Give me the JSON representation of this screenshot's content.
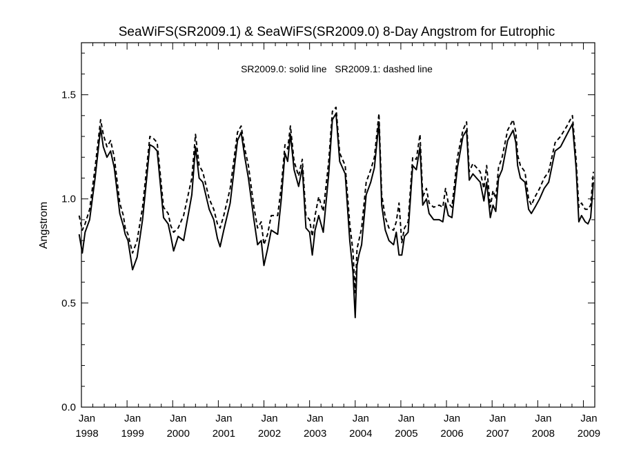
{
  "chart_data": {
    "type": "line",
    "title": "SeaWiFS(SR2009.1) & SeaWiFS(SR2009.0) 8-Day Angstrom for Eutrophic",
    "annotation": "SR2009.0: solid line   SR2009.1: dashed line",
    "xlabel": "",
    "ylabel": "Angstrom",
    "xlim": [
      1998.0,
      2009.25
    ],
    "ylim": [
      0.0,
      1.75
    ],
    "yticks": [
      0.0,
      0.5,
      1.0,
      1.5
    ],
    "yticks_label": [
      "0.0",
      "0.5",
      "1.0",
      "1.5"
    ],
    "xticks": [
      {
        "x": 1998,
        "line1": "Jan",
        "line2": "1998"
      },
      {
        "x": 1999,
        "line1": "Jan",
        "line2": "1999"
      },
      {
        "x": 2000,
        "line1": "Jan",
        "line2": "2000"
      },
      {
        "x": 2001,
        "line1": "Jan",
        "line2": "2001"
      },
      {
        "x": 2002,
        "line1": "Jan",
        "line2": "2002"
      },
      {
        "x": 2003,
        "line1": "Jan",
        "line2": "2003"
      },
      {
        "x": 2004,
        "line1": "Jan",
        "line2": "2004"
      },
      {
        "x": 2005,
        "line1": "Jan",
        "line2": "2005"
      },
      {
        "x": 2006,
        "line1": "Jan",
        "line2": "2006"
      },
      {
        "x": 2007,
        "line1": "Jan",
        "line2": "2007"
      },
      {
        "x": 2008,
        "line1": "Jan",
        "line2": "2008"
      },
      {
        "x": 2009,
        "line1": "Jan",
        "line2": "2009"
      }
    ],
    "grid": false,
    "series": [
      {
        "name": "SR2009.0",
        "style": "solid",
        "color": "#000000",
        "x": [
          1997.95,
          1998.02,
          1998.08,
          1998.18,
          1998.3,
          1998.42,
          1998.48,
          1998.56,
          1998.64,
          1998.72,
          1998.84,
          1998.92,
          1998.96,
          1999.02,
          1999.12,
          1999.22,
          1999.34,
          1999.43,
          1999.5,
          1999.58,
          1999.66,
          1999.8,
          1999.9,
          1999.96,
          2000.02,
          2000.12,
          2000.24,
          2000.42,
          2000.5,
          2000.58,
          2000.66,
          2000.8,
          2000.9,
          2000.98,
          2001.04,
          2001.12,
          2001.26,
          2001.42,
          2001.5,
          2001.58,
          2001.66,
          2001.78,
          2001.86,
          2001.94,
          2002.0,
          2002.08,
          2002.16,
          2002.3,
          2002.38,
          2002.46,
          2002.52,
          2002.58,
          2002.66,
          2002.76,
          2002.84,
          2002.92,
          2003.0,
          2003.06,
          2003.12,
          2003.2,
          2003.3,
          2003.42,
          2003.5,
          2003.58,
          2003.66,
          2003.78,
          2003.88,
          2003.95,
          2004.0,
          2004.04,
          2004.08,
          2004.14,
          2004.24,
          2004.34,
          2004.42,
          2004.52,
          2004.58,
          2004.66,
          2004.74,
          2004.84,
          2004.9,
          2004.96,
          2005.02,
          2005.08,
          2005.16,
          2005.26,
          2005.34,
          2005.42,
          2005.48,
          2005.56,
          2005.62,
          2005.72,
          2005.84,
          2005.92,
          2005.98,
          2006.04,
          2006.12,
          2006.24,
          2006.36,
          2006.44,
          2006.5,
          2006.58,
          2006.66,
          2006.74,
          2006.82,
          2006.88,
          2006.96,
          2007.02,
          2007.08,
          2007.14,
          2007.22,
          2007.34,
          2007.46,
          2007.52,
          2007.56,
          2007.62,
          2007.72,
          2007.8,
          2007.86,
          2007.94,
          2008.04,
          2008.14,
          2008.24,
          2008.38,
          2008.5,
          2008.64,
          2008.76,
          2008.84,
          2008.9,
          2008.96,
          2009.04,
          2009.1,
          2009.16,
          2009.22
        ],
        "y": [
          0.83,
          0.74,
          0.84,
          0.9,
          1.1,
          1.34,
          1.25,
          1.2,
          1.23,
          1.15,
          0.93,
          0.87,
          0.83,
          0.8,
          0.66,
          0.72,
          0.9,
          1.1,
          1.26,
          1.25,
          1.23,
          0.91,
          0.88,
          0.82,
          0.75,
          0.82,
          0.8,
          1.02,
          1.25,
          1.1,
          1.08,
          0.95,
          0.9,
          0.81,
          0.77,
          0.85,
          0.98,
          1.28,
          1.32,
          1.2,
          1.1,
          0.9,
          0.78,
          0.8,
          0.68,
          0.76,
          0.85,
          0.83,
          1.0,
          1.22,
          1.18,
          1.31,
          1.14,
          1.06,
          1.15,
          0.86,
          0.84,
          0.73,
          0.85,
          0.92,
          0.84,
          1.12,
          1.38,
          1.41,
          1.18,
          1.12,
          0.8,
          0.65,
          0.43,
          0.68,
          0.73,
          0.78,
          1.02,
          1.08,
          1.15,
          1.37,
          0.97,
          0.85,
          0.8,
          0.78,
          0.84,
          0.73,
          0.73,
          0.82,
          0.84,
          1.16,
          1.14,
          1.25,
          0.97,
          1.0,
          0.93,
          0.9,
          0.9,
          0.89,
          0.98,
          0.92,
          0.91,
          1.15,
          1.3,
          1.33,
          1.09,
          1.12,
          1.1,
          1.08,
          0.99,
          1.08,
          0.91,
          0.97,
          0.94,
          1.1,
          1.14,
          1.28,
          1.33,
          1.27,
          1.16,
          1.1,
          1.08,
          0.95,
          0.93,
          0.96,
          1.0,
          1.05,
          1.08,
          1.23,
          1.25,
          1.31,
          1.36,
          1.15,
          0.89,
          0.92,
          0.89,
          0.88,
          0.91,
          1.08
        ]
      },
      {
        "name": "SR2009.1",
        "style": "dashed",
        "color": "#000000",
        "x": [
          1997.95,
          1998.02,
          1998.08,
          1998.18,
          1998.3,
          1998.42,
          1998.48,
          1998.56,
          1998.64,
          1998.72,
          1998.84,
          1998.92,
          1998.96,
          1999.02,
          1999.12,
          1999.22,
          1999.34,
          1999.43,
          1999.5,
          1999.58,
          1999.66,
          1999.8,
          1999.9,
          1999.96,
          2000.02,
          2000.12,
          2000.24,
          2000.42,
          2000.5,
          2000.58,
          2000.66,
          2000.8,
          2000.9,
          2000.98,
          2001.04,
          2001.12,
          2001.26,
          2001.42,
          2001.5,
          2001.58,
          2001.66,
          2001.78,
          2001.86,
          2001.94,
          2002.0,
          2002.08,
          2002.16,
          2002.3,
          2002.38,
          2002.46,
          2002.52,
          2002.58,
          2002.66,
          2002.76,
          2002.84,
          2002.92,
          2003.0,
          2003.06,
          2003.12,
          2003.2,
          2003.3,
          2003.42,
          2003.5,
          2003.58,
          2003.66,
          2003.78,
          2003.88,
          2003.95,
          2004.0,
          2004.04,
          2004.08,
          2004.14,
          2004.24,
          2004.34,
          2004.42,
          2004.52,
          2004.58,
          2004.66,
          2004.74,
          2004.84,
          2004.9,
          2004.96,
          2005.02,
          2005.08,
          2005.16,
          2005.26,
          2005.34,
          2005.42,
          2005.48,
          2005.56,
          2005.62,
          2005.72,
          2005.84,
          2005.92,
          2005.98,
          2006.04,
          2006.12,
          2006.24,
          2006.36,
          2006.44,
          2006.5,
          2006.58,
          2006.66,
          2006.74,
          2006.82,
          2006.88,
          2006.96,
          2007.02,
          2007.08,
          2007.14,
          2007.22,
          2007.34,
          2007.46,
          2007.52,
          2007.56,
          2007.62,
          2007.72,
          2007.8,
          2007.86,
          2007.94,
          2008.04,
          2008.14,
          2008.24,
          2008.38,
          2008.5,
          2008.64,
          2008.76,
          2008.84,
          2008.9,
          2008.96,
          2009.04,
          2009.1,
          2009.16,
          2009.22
        ],
        "y": [
          0.92,
          0.85,
          0.88,
          0.95,
          1.15,
          1.38,
          1.31,
          1.25,
          1.28,
          1.2,
          0.98,
          0.92,
          0.86,
          0.83,
          0.74,
          0.8,
          0.96,
          1.15,
          1.3,
          1.29,
          1.27,
          0.96,
          0.93,
          0.87,
          0.84,
          0.86,
          0.92,
          1.1,
          1.31,
          1.16,
          1.13,
          1.0,
          0.95,
          0.88,
          0.86,
          0.92,
          1.05,
          1.32,
          1.35,
          1.24,
          1.16,
          0.96,
          0.86,
          0.89,
          0.78,
          0.83,
          0.92,
          0.92,
          1.06,
          1.26,
          1.24,
          1.35,
          1.18,
          1.11,
          1.19,
          0.92,
          0.9,
          0.82,
          0.92,
          1.01,
          0.94,
          1.18,
          1.42,
          1.44,
          1.22,
          1.16,
          0.88,
          0.75,
          0.55,
          0.76,
          0.8,
          0.86,
          1.08,
          1.14,
          1.2,
          1.41,
          1.02,
          0.91,
          0.86,
          0.85,
          0.89,
          0.98,
          0.79,
          0.86,
          0.89,
          1.2,
          1.19,
          1.31,
          1.01,
          1.05,
          0.98,
          0.96,
          0.97,
          0.96,
          1.05,
          0.98,
          0.96,
          1.2,
          1.33,
          1.37,
          1.13,
          1.17,
          1.15,
          1.13,
          1.05,
          1.16,
          0.96,
          1.04,
          1.0,
          1.15,
          1.2,
          1.33,
          1.38,
          1.32,
          1.21,
          1.16,
          1.13,
          1.0,
          0.97,
          1.01,
          1.05,
          1.1,
          1.13,
          1.27,
          1.3,
          1.35,
          1.4,
          1.19,
          0.96,
          0.98,
          0.95,
          0.95,
          0.97,
          1.13
        ]
      }
    ]
  }
}
